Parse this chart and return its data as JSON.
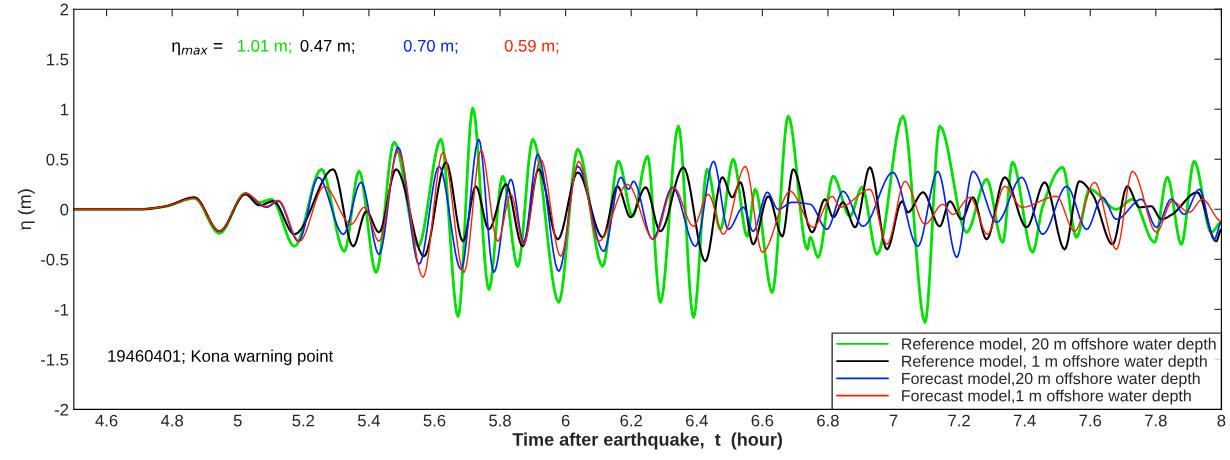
{
  "chart_data": {
    "type": "line",
    "xlabel": "Time after earthquake,  t  (hour)",
    "ylabel": "η (m)",
    "xlim": [
      4.5,
      8
    ],
    "xticks": [
      4.6,
      4.8,
      5,
      5.2,
      5.4,
      5.6,
      5.8,
      6,
      6.2,
      6.4,
      6.6,
      6.8,
      7,
      7.2,
      7.4,
      7.6,
      7.8,
      8
    ],
    "ylim": [
      -2,
      2
    ],
    "yticks": [
      -2,
      -1.5,
      -1,
      -0.5,
      0,
      0.5,
      1,
      1.5,
      2
    ],
    "grid": false,
    "legend": "bottom right",
    "marker": "none",
    "line_style": "solid",
    "annotations": [
      "η$_{max}$ =",
      "1.01 m;",
      "0.47 m;",
      "0.70 m;",
      "0.59 m;",
      "19460401; Kona warning point"
    ],
    "series": [
      {
        "name": "Reference model, 20 m offshore water depth",
        "color": "#00e000",
        "x": [
          4.5,
          4.7,
          4.78,
          4.868,
          4.944,
          5.023,
          5.066,
          5.103,
          5.173,
          5.255,
          5.325,
          5.37,
          5.422,
          5.477,
          5.55,
          5.62,
          5.672,
          5.717,
          5.766,
          5.808,
          5.854,
          5.9,
          5.979,
          6.037,
          6.113,
          6.161,
          6.204,
          6.25,
          6.289,
          6.344,
          6.39,
          6.432,
          6.472,
          6.511,
          6.554,
          6.578,
          6.63,
          6.679,
          6.737,
          6.746,
          6.77,
          6.816,
          6.867,
          6.904,
          6.95,
          7.029,
          7.096,
          7.141,
          7.223,
          7.284,
          7.333,
          7.363,
          7.424,
          7.455,
          7.516,
          7.558,
          7.598,
          7.68,
          7.729,
          7.796,
          7.835,
          7.878,
          7.917,
          7.969,
          8.0
        ],
        "values": [
          0,
          0,
          0.03,
          0.11,
          -0.24,
          0.16,
          0.07,
          0.1,
          -0.37,
          0.4,
          -0.42,
          0.38,
          -0.63,
          0.67,
          -0.37,
          0.7,
          -1.07,
          1.01,
          -0.8,
          0.33,
          -0.57,
          0.7,
          -0.93,
          0.6,
          -0.57,
          0.48,
          -0.07,
          0.53,
          -0.93,
          0.83,
          -1.08,
          0.4,
          -0.2,
          0.5,
          -0.27,
          0.2,
          -0.83,
          0.93,
          -0.4,
          -0.28,
          -0.48,
          0.33,
          -0.07,
          0.22,
          -0.45,
          0.93,
          -1.13,
          0.83,
          -0.23,
          0.3,
          -0.33,
          0.47,
          -0.43,
          0.03,
          0.42,
          -0.28,
          0.2,
          0.0,
          0.1,
          -0.33,
          0.32,
          -0.35,
          0.48,
          -0.23,
          -0.13
        ]
      },
      {
        "name": "Reference model, 1 m offshore water depth",
        "color": "#000000",
        "x": [
          4.5,
          4.7,
          4.78,
          4.868,
          4.944,
          5.023,
          5.066,
          5.109,
          5.173,
          5.291,
          5.352,
          5.392,
          5.431,
          5.483,
          5.568,
          5.635,
          5.687,
          5.726,
          5.766,
          5.818,
          5.869,
          5.918,
          5.976,
          6.037,
          6.113,
          6.158,
          6.198,
          6.244,
          6.289,
          6.359,
          6.426,
          6.478,
          6.508,
          6.533,
          6.572,
          6.618,
          6.661,
          6.694,
          6.752,
          6.791,
          6.816,
          6.846,
          6.883,
          6.928,
          6.98,
          7.026,
          7.044,
          7.09,
          7.141,
          7.172,
          7.208,
          7.242,
          7.284,
          7.339,
          7.406,
          7.461,
          7.522,
          7.567,
          7.607,
          7.668,
          7.713,
          7.75,
          7.786,
          7.817,
          7.85,
          7.926,
          7.984,
          8.0
        ],
        "values": [
          0,
          0,
          0.03,
          0.12,
          -0.22,
          0.15,
          0.04,
          0.08,
          -0.25,
          0.4,
          -0.37,
          -0.02,
          -0.23,
          0.4,
          -0.47,
          0.47,
          -0.32,
          0.23,
          -0.2,
          0.25,
          -0.37,
          0.4,
          -0.3,
          0.37,
          -0.28,
          0.23,
          -0.08,
          0.22,
          -0.22,
          0.42,
          -0.52,
          0.32,
          0.12,
          0.27,
          -0.35,
          0.13,
          -0.27,
          0.4,
          -0.23,
          0.1,
          -0.08,
          0.07,
          -0.18,
          0.42,
          -0.4,
          0.08,
          -0.03,
          0.17,
          -0.17,
          0.08,
          -0.1,
          0.12,
          -0.3,
          0.32,
          -0.18,
          0.27,
          -0.4,
          0.28,
          0.15,
          -0.35,
          0.23,
          0.02,
          0.03,
          -0.1,
          -0.05,
          0.17,
          -0.32,
          -0.2
        ]
      },
      {
        "name": "Forecast model,20 m offshore water depth",
        "color": "#0022ff",
        "x": [
          5.023,
          5.087,
          5.124,
          5.185,
          5.246,
          5.322,
          5.376,
          5.431,
          5.489,
          5.553,
          5.614,
          5.681,
          5.735,
          5.781,
          5.833,
          5.872,
          5.915,
          5.979,
          6.037,
          6.116,
          6.168,
          6.192,
          6.207,
          6.265,
          6.326,
          6.396,
          6.451,
          6.496,
          6.542,
          6.572,
          6.615,
          6.648,
          6.691,
          6.746,
          6.797,
          6.846,
          6.907,
          6.998,
          7.074,
          7.135,
          7.193,
          7.242,
          7.315,
          7.391,
          7.455,
          7.528,
          7.589,
          7.637,
          7.68,
          7.756,
          7.802,
          7.847,
          7.887,
          7.933,
          7.978,
          8.0
        ],
        "values": [
          0.16,
          0.02,
          0.08,
          -0.32,
          0.32,
          -0.25,
          0.27,
          -0.45,
          0.62,
          -0.55,
          0.43,
          -0.6,
          0.7,
          -0.63,
          0.3,
          -0.33,
          0.55,
          -0.62,
          0.43,
          -0.42,
          0.32,
          0.2,
          0.28,
          -0.3,
          0.22,
          -0.37,
          0.48,
          -0.2,
          0.02,
          -0.22,
          0.17,
          0.0,
          0.07,
          0.05,
          -0.2,
          0.18,
          -0.17,
          0.37,
          -0.37,
          0.38,
          -0.48,
          0.38,
          -0.13,
          0.32,
          -0.25,
          0.23,
          -0.2,
          0.12,
          -0.1,
          0.1,
          -0.18,
          0.1,
          -0.05,
          0.2,
          -0.3,
          -0.13
        ]
      },
      {
        "name": "Forecast model,1 m offshore water depth",
        "color": "#ff2200",
        "x": [
          4.5,
          4.7,
          4.78,
          4.868,
          4.944,
          5.023,
          5.087,
          5.124,
          5.188,
          5.264,
          5.346,
          5.386,
          5.431,
          5.489,
          5.565,
          5.626,
          5.69,
          5.742,
          5.793,
          5.833,
          5.872,
          5.924,
          5.985,
          6.04,
          6.101,
          6.189,
          6.268,
          6.329,
          6.39,
          6.435,
          6.481,
          6.548,
          6.6,
          6.685,
          6.755,
          6.813,
          6.837,
          6.928,
          6.98,
          7.035,
          7.096,
          7.15,
          7.181,
          7.233,
          7.287,
          7.339,
          7.391,
          7.497,
          7.552,
          7.613,
          7.68,
          7.729,
          7.802,
          7.85,
          7.902,
          7.942,
          8.0
        ],
        "values": [
          0,
          0,
          0.03,
          0.11,
          -0.22,
          0.16,
          0.03,
          0.09,
          -0.32,
          0.23,
          -0.15,
          0.02,
          -0.32,
          0.58,
          -0.68,
          0.57,
          -0.63,
          0.59,
          -0.32,
          0.15,
          -0.35,
          0.5,
          -0.47,
          0.48,
          -0.32,
          0.25,
          -0.3,
          0.22,
          -0.17,
          0.15,
          -0.25,
          0.43,
          -0.43,
          0.18,
          -0.18,
          0.13,
          0.02,
          0.2,
          -0.35,
          0.28,
          -0.15,
          0.05,
          -0.05,
          0.12,
          -0.25,
          0.23,
          0.02,
          0.13,
          -0.22,
          0.27,
          -0.4,
          0.38,
          -0.23,
          0.08,
          -0.03,
          0.1,
          -0.12
        ]
      }
    ]
  }
}
